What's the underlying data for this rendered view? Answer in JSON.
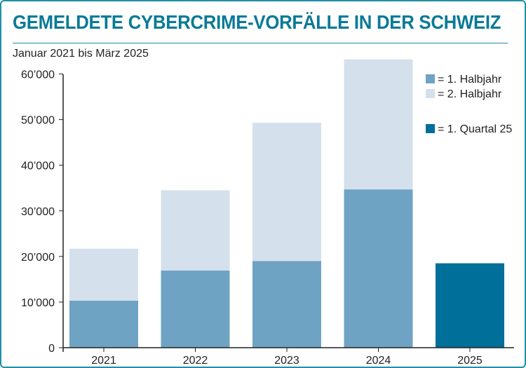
{
  "colors": {
    "title": "#0a7a96",
    "border": "#1f8fa8",
    "h1": "#6fa3c4",
    "h2": "#d4e0ec",
    "q1": "#006f9a",
    "axis": "#222222",
    "text": "#222222"
  },
  "chart_data": {
    "type": "bar",
    "stacked": true,
    "title": "GEMELDETE CYBERCRIME-VORFÄLLE IN DER SCHWEIZ",
    "subtitle": "Januar 2021 bis März 2025",
    "categories": [
      "2021",
      "2022",
      "2023",
      "2024",
      "2025"
    ],
    "series": [
      {
        "name": "= 1. Halbjahr",
        "color_key": "h1",
        "values": [
          10300,
          16900,
          19000,
          34700,
          null
        ]
      },
      {
        "name": "= 2. Halbjahr",
        "color_key": "h2",
        "values": [
          11400,
          17600,
          30300,
          28500,
          null
        ]
      },
      {
        "name": "= 1. Quartal 25",
        "color_key": "q1",
        "values": [
          null,
          null,
          null,
          null,
          18500
        ]
      }
    ],
    "ylim": [
      0,
      63000
    ],
    "yticks": [
      0,
      10000,
      20000,
      30000,
      40000,
      50000,
      60000
    ],
    "ytick_labels": [
      "0",
      "10’000",
      "20’000",
      "30’000",
      "40’000",
      "50’000",
      "60’000"
    ],
    "legend_position": "top-right",
    "grid": false
  }
}
